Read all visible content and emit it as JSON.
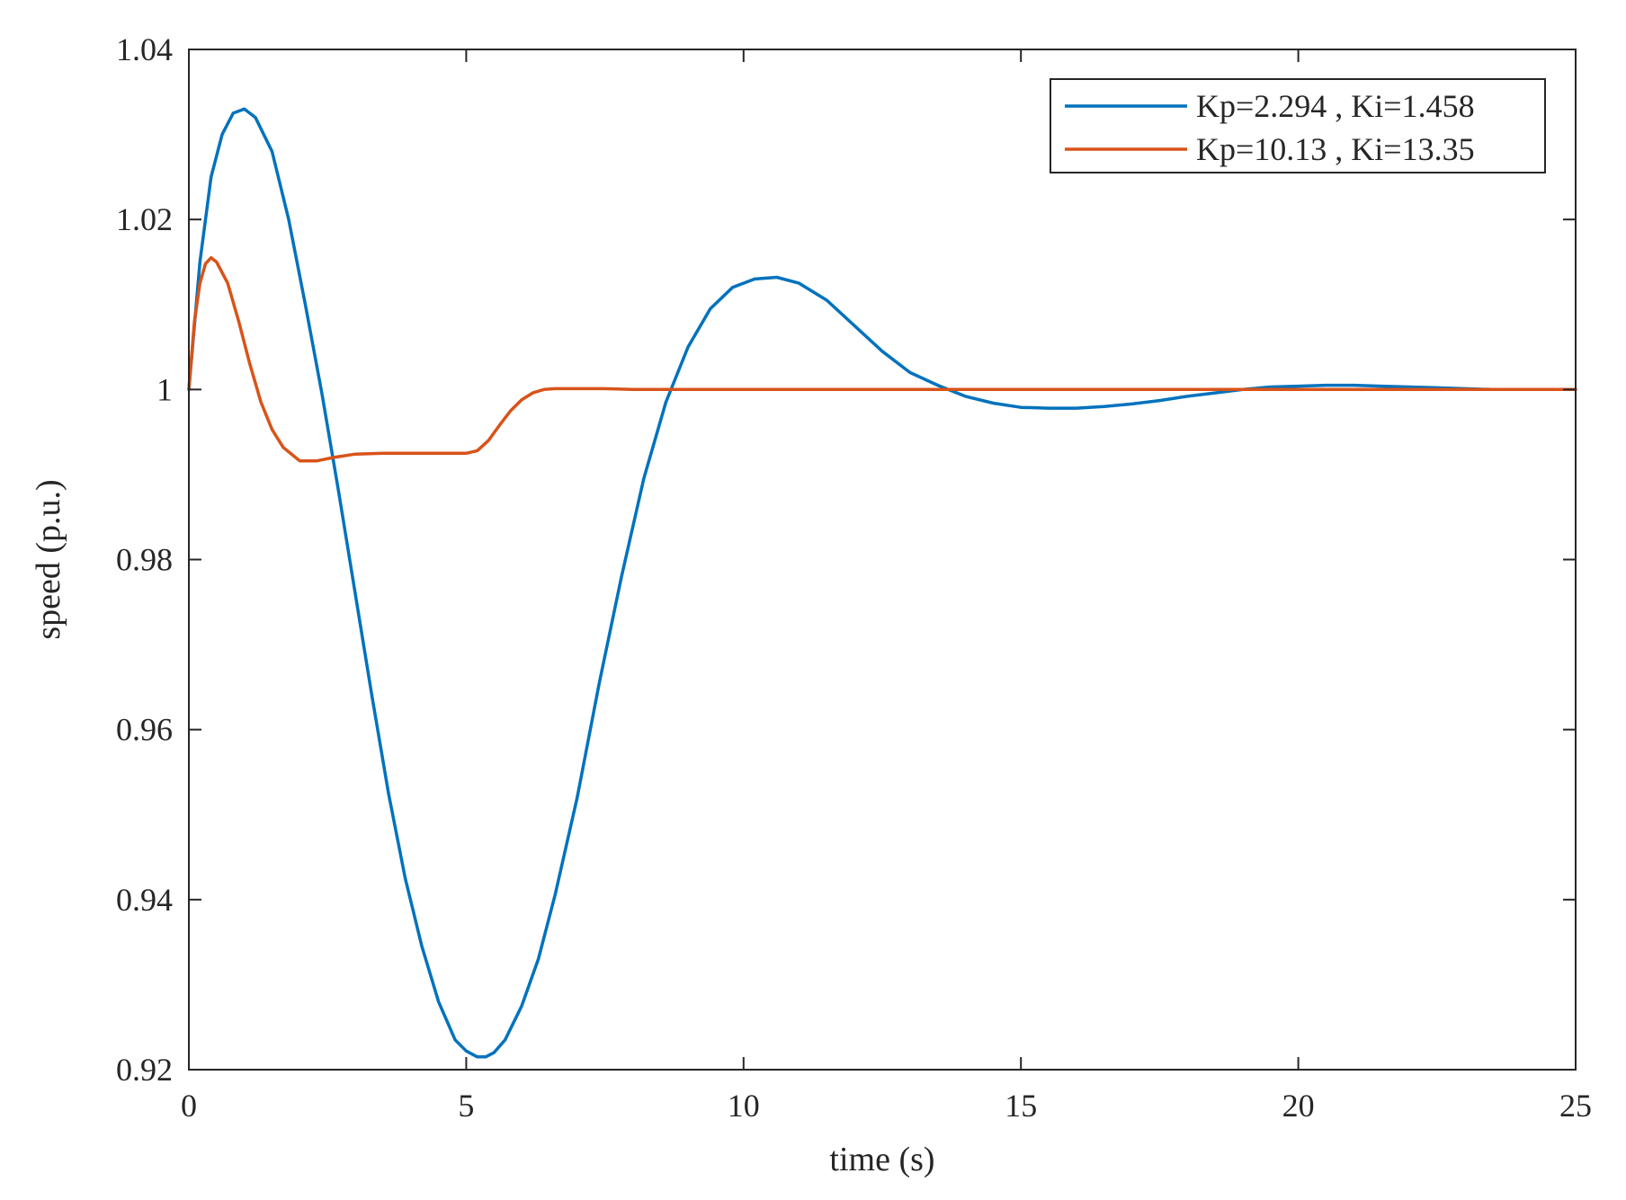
{
  "chart_data": {
    "type": "line",
    "title": "",
    "xlabel": "time (s)",
    "ylabel": "speed (p.u.)",
    "xlim": [
      0,
      25
    ],
    "ylim": [
      0.92,
      1.04
    ],
    "xticks": [
      0,
      5,
      10,
      15,
      20,
      25
    ],
    "xtick_labels": [
      "0",
      "5",
      "10",
      "15",
      "20",
      "25"
    ],
    "yticks": [
      0.92,
      0.94,
      0.96,
      0.98,
      1.0,
      1.02,
      1.04
    ],
    "ytick_labels": [
      "0.92",
      "0.94",
      "0.96",
      "0.98",
      "1",
      "1.02",
      "1.04"
    ],
    "grid": false,
    "legend_position": "top-right",
    "series": [
      {
        "name": "Kp=2.294 , Ki=1.458",
        "color": "#0072BD",
        "x": [
          0,
          0.2,
          0.4,
          0.6,
          0.8,
          1.0,
          1.2,
          1.5,
          1.8,
          2.1,
          2.4,
          2.7,
          3.0,
          3.3,
          3.6,
          3.9,
          4.2,
          4.5,
          4.8,
          5.0,
          5.2,
          5.35,
          5.5,
          5.7,
          6.0,
          6.3,
          6.6,
          7.0,
          7.4,
          7.8,
          8.2,
          8.6,
          9.0,
          9.4,
          9.8,
          10.2,
          10.6,
          11.0,
          11.5,
          12.0,
          12.5,
          13.0,
          13.5,
          14.0,
          14.5,
          15.0,
          15.5,
          16.0,
          16.5,
          17.0,
          17.5,
          18.0,
          18.5,
          19.0,
          19.5,
          20.0,
          20.5,
          21.0,
          21.5,
          22.0,
          22.5,
          23.0,
          23.5,
          24.0
        ],
        "y": [
          1.0,
          1.015,
          1.025,
          1.03,
          1.0325,
          1.033,
          1.032,
          1.028,
          1.02,
          1.01,
          0.9995,
          0.988,
          0.976,
          0.964,
          0.9525,
          0.9425,
          0.9345,
          0.928,
          0.9235,
          0.9222,
          0.9215,
          0.9215,
          0.922,
          0.9235,
          0.9275,
          0.933,
          0.9405,
          0.952,
          0.9655,
          0.978,
          0.9895,
          0.9985,
          1.005,
          1.0095,
          1.012,
          1.013,
          1.0132,
          1.0125,
          1.0105,
          1.0075,
          1.0045,
          1.002,
          1.0005,
          0.9992,
          0.9984,
          0.9979,
          0.9978,
          0.9978,
          0.998,
          0.9983,
          0.9987,
          0.9992,
          0.9996,
          1.0,
          1.0003,
          1.0004,
          1.0005,
          1.0005,
          1.0004,
          1.0003,
          1.0002,
          1.0001,
          1.0,
          1.0
        ]
      },
      {
        "name": "Kp=10.13 , Ki=13.35",
        "color": "#D95319",
        "x": [
          0,
          0.1,
          0.2,
          0.3,
          0.4,
          0.5,
          0.7,
          0.9,
          1.1,
          1.3,
          1.5,
          1.7,
          2.0,
          2.3,
          2.6,
          3.0,
          3.5,
          4.0,
          4.5,
          5.0,
          5.2,
          5.4,
          5.6,
          5.8,
          6.0,
          6.2,
          6.4,
          6.6,
          7.0,
          7.5,
          8.0,
          10.0,
          15.0,
          20.0,
          25.0
        ],
        "y": [
          1.0,
          1.008,
          1.0125,
          1.0148,
          1.0155,
          1.015,
          1.0125,
          1.008,
          1.003,
          0.9985,
          0.9953,
          0.9932,
          0.9916,
          0.9916,
          0.992,
          0.9924,
          0.9925,
          0.9925,
          0.9925,
          0.9925,
          0.9928,
          0.994,
          0.9958,
          0.9975,
          0.9988,
          0.9996,
          1.0,
          1.0001,
          1.0001,
          1.0001,
          1.0,
          1.0,
          1.0,
          1.0,
          1.0
        ]
      }
    ]
  }
}
